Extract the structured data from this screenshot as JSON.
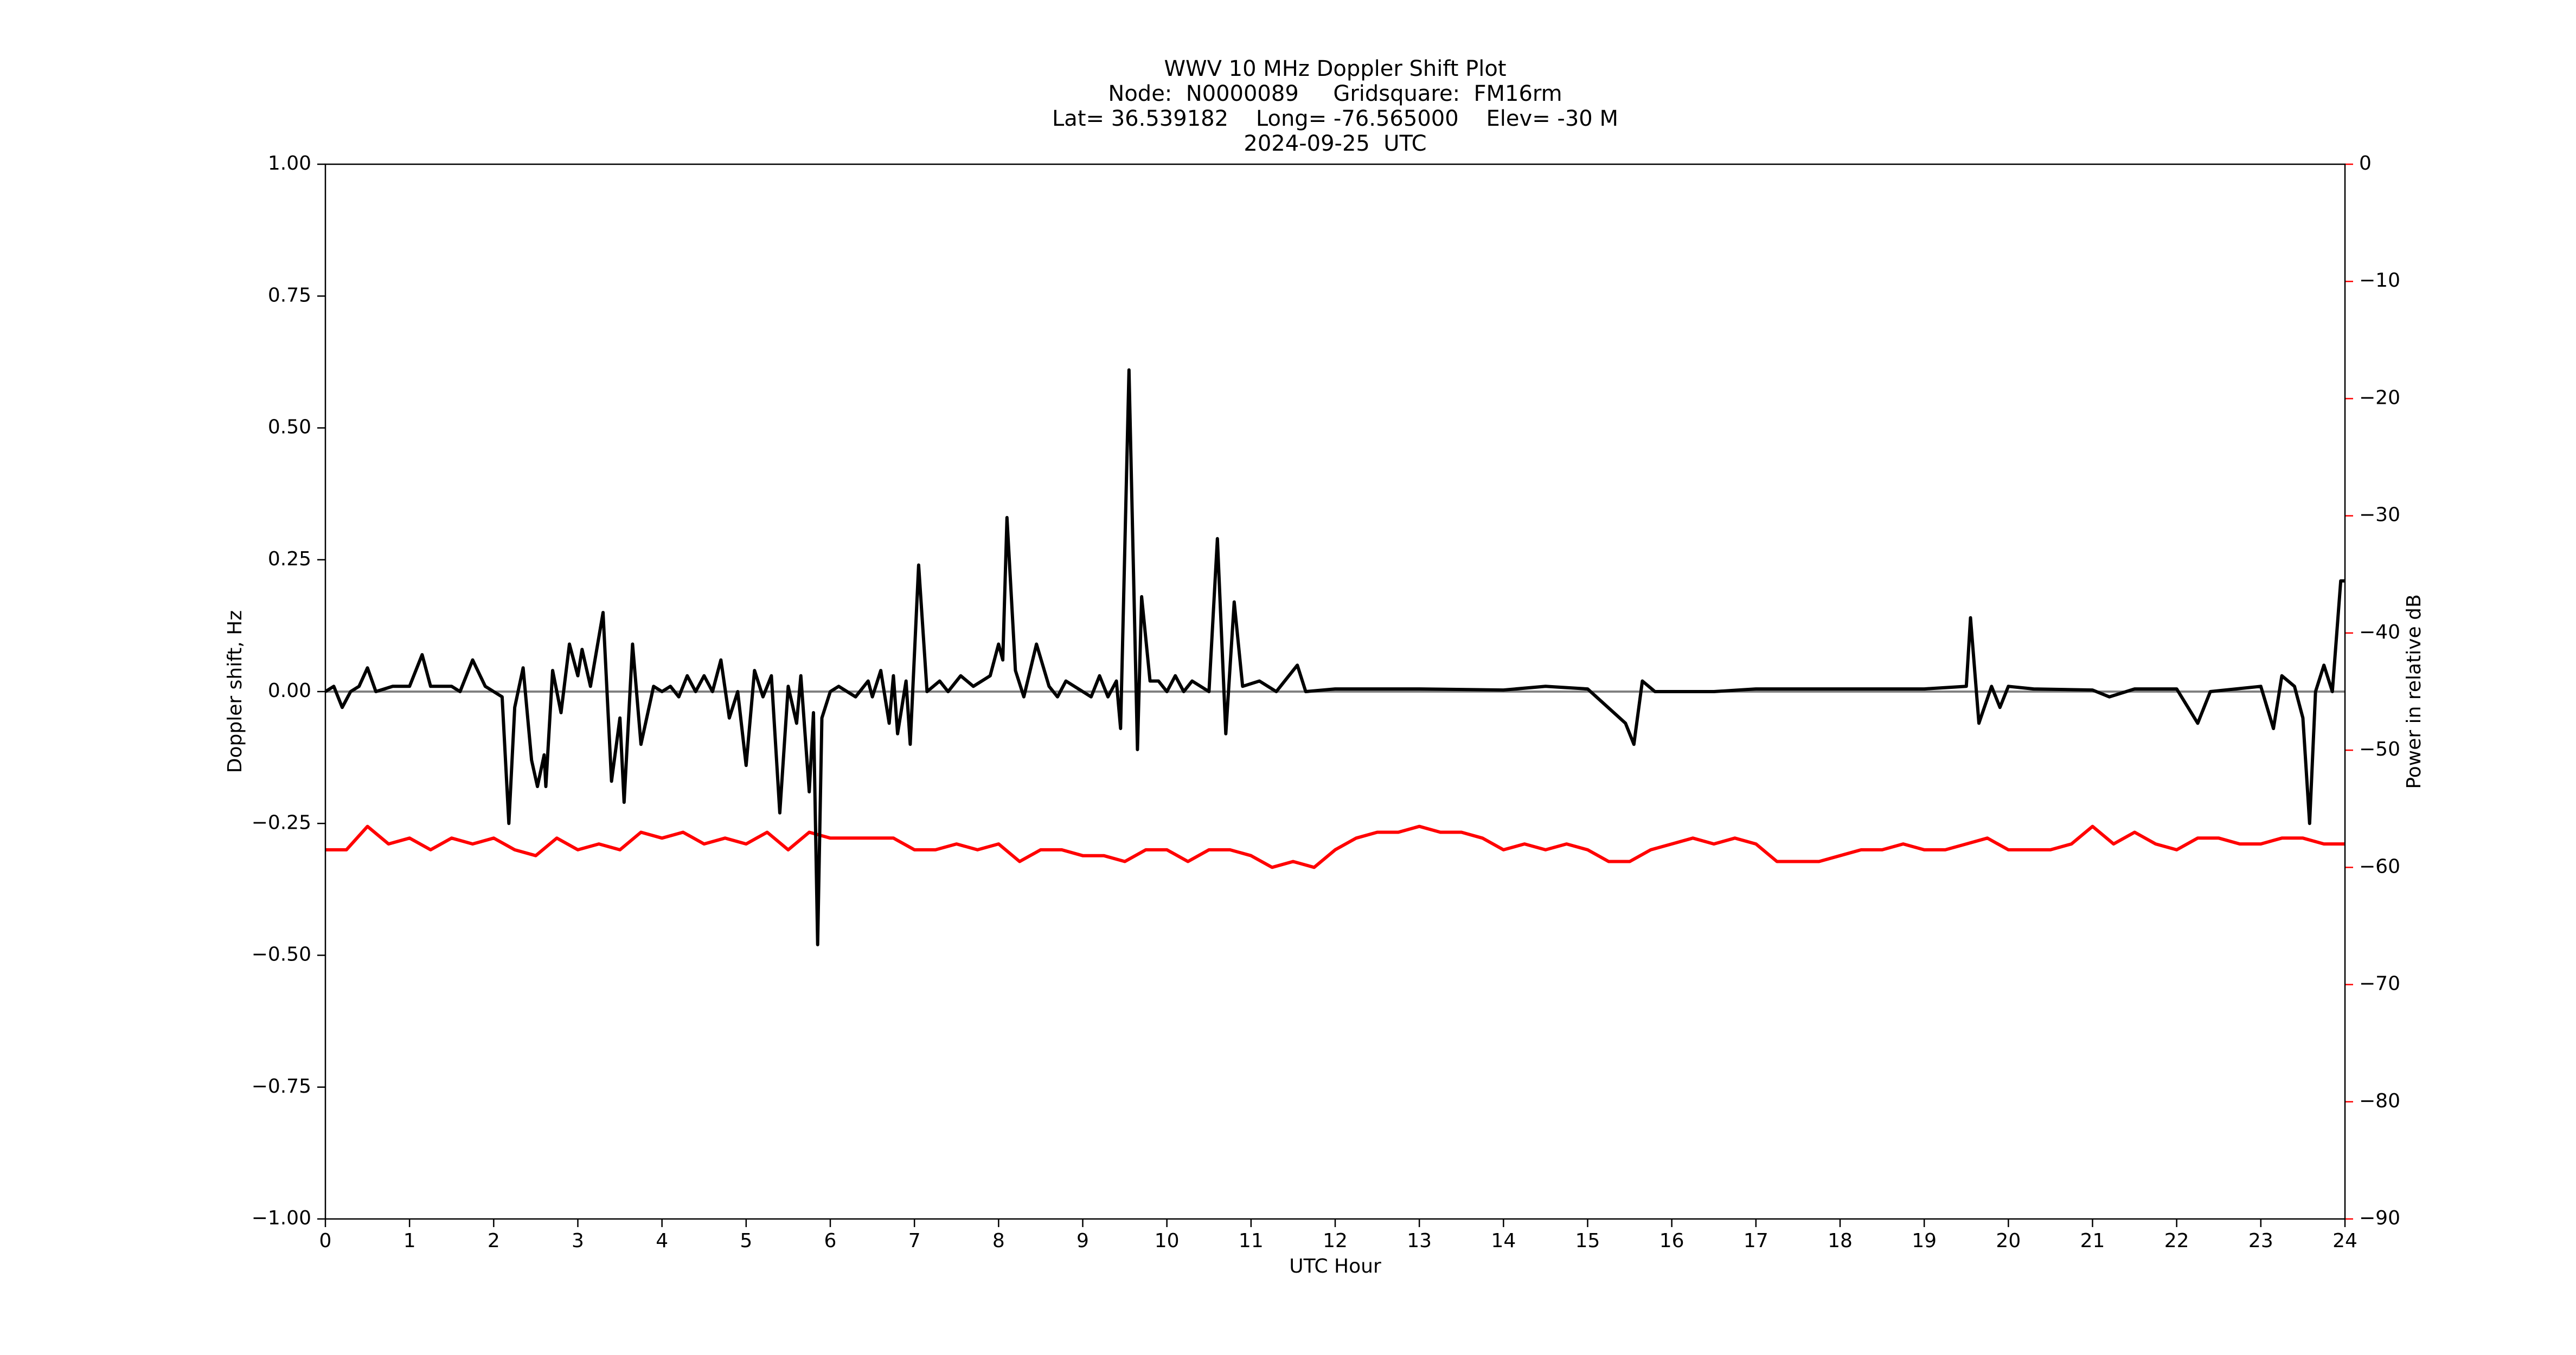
{
  "chart_data": {
    "type": "line",
    "title": "WWV 10 MHz Doppler Shift Plot",
    "subtitle": [
      "Node:  N0000089     Gridsquare:  FM16rm",
      "Lat= 36.539182    Long= -76.565000    Elev= -30 M",
      "2024-09-25  UTC"
    ],
    "xlabel": "UTC Hour",
    "ylabel": "Doppler shift, Hz",
    "y2label": "Power in relative dB",
    "xlim": [
      0,
      24
    ],
    "xticks": [
      0,
      1,
      2,
      3,
      4,
      5,
      6,
      7,
      8,
      9,
      10,
      11,
      12,
      13,
      14,
      15,
      16,
      17,
      18,
      19,
      20,
      21,
      22,
      23,
      24
    ],
    "ylim": [
      -1,
      1
    ],
    "yticks": [
      {
        "value": -1,
        "label": "−1.00"
      },
      {
        "value": -0.75,
        "label": "−0.75"
      },
      {
        "value": -0.5,
        "label": "−0.50"
      },
      {
        "value": -0.25,
        "label": "−0.25"
      },
      {
        "value": 0,
        "label": "0.00"
      },
      {
        "value": 0.25,
        "label": "0.25"
      },
      {
        "value": 0.5,
        "label": "0.50"
      },
      {
        "value": 0.75,
        "label": "0.75"
      },
      {
        "value": 1,
        "label": "1.00"
      }
    ],
    "y2lim": [
      -90,
      0
    ],
    "y2ticks": [
      {
        "value": -90,
        "label": "−90"
      },
      {
        "value": -80,
        "label": "−80"
      },
      {
        "value": -70,
        "label": "−70"
      },
      {
        "value": -60,
        "label": "−60"
      },
      {
        "value": -50,
        "label": "−50"
      },
      {
        "value": -40,
        "label": "−40"
      },
      {
        "value": -30,
        "label": "−30"
      },
      {
        "value": -20,
        "label": "−20"
      },
      {
        "value": -10,
        "label": "−10"
      },
      0
    ],
    "y2color": "#ff0000",
    "reference_line": 0,
    "reference_color": "#808080",
    "series": [
      {
        "name": "Doppler shift",
        "color": "#000000",
        "x": [
          0,
          0.1,
          0.2,
          0.3,
          0.4,
          0.5,
          0.6,
          0.8,
          1.0,
          1.15,
          1.25,
          1.5,
          1.6,
          1.75,
          1.9,
          2.0,
          2.1,
          2.18,
          2.25,
          2.35,
          2.45,
          2.52,
          2.6,
          2.62,
          2.7,
          2.8,
          2.9,
          3.0,
          3.05,
          3.15,
          3.3,
          3.4,
          3.5,
          3.55,
          3.65,
          3.75,
          3.9,
          4.0,
          4.1,
          4.2,
          4.3,
          4.4,
          4.5,
          4.6,
          4.7,
          4.8,
          4.9,
          5.0,
          5.1,
          5.2,
          5.3,
          5.4,
          5.5,
          5.6,
          5.65,
          5.75,
          5.8,
          5.85,
          5.9,
          6.0,
          6.1,
          6.3,
          6.45,
          6.5,
          6.6,
          6.7,
          6.75,
          6.8,
          6.9,
          6.95,
          7.05,
          7.15,
          7.3,
          7.4,
          7.55,
          7.7,
          7.9,
          8.0,
          8.05,
          8.1,
          8.2,
          8.3,
          8.45,
          8.6,
          8.7,
          8.8,
          9.0,
          9.1,
          9.2,
          9.3,
          9.4,
          9.45,
          9.55,
          9.65,
          9.7,
          9.8,
          9.9,
          10.0,
          10.1,
          10.2,
          10.3,
          10.5,
          10.6,
          10.7,
          10.8,
          10.9,
          11.1,
          11.3,
          11.55,
          11.65,
          12,
          13,
          14,
          14.5,
          15,
          15.45,
          15.55,
          15.65,
          15.8,
          16.5,
          17,
          18,
          19,
          19.5,
          19.55,
          19.65,
          19.8,
          19.9,
          20.0,
          20.3,
          21,
          21.2,
          21.5,
          22,
          22.25,
          22.4,
          23,
          23.15,
          23.25,
          23.4,
          23.5,
          23.58,
          23.65,
          23.75,
          23.85,
          23.95,
          24
        ],
        "values": [
          0,
          0.01,
          -0.03,
          0,
          0.01,
          0.045,
          0,
          0.01,
          0.01,
          0.07,
          0.01,
          0.01,
          0,
          0.06,
          0.01,
          0,
          -0.01,
          -0.25,
          -0.03,
          0.045,
          -0.13,
          -0.18,
          -0.12,
          -0.18,
          0.04,
          -0.04,
          0.09,
          0.03,
          0.08,
          0.01,
          0.15,
          -0.17,
          -0.05,
          -0.21,
          0.09,
          -0.1,
          0.01,
          0,
          0.01,
          -0.01,
          0.03,
          0,
          0.03,
          0,
          0.06,
          -0.05,
          0,
          -0.14,
          0.04,
          -0.01,
          0.03,
          -0.23,
          0.01,
          -0.06,
          0.03,
          -0.19,
          -0.04,
          -0.48,
          -0.05,
          0,
          0.01,
          -0.01,
          0.02,
          -0.01,
          0.04,
          -0.06,
          0.03,
          -0.08,
          0.02,
          -0.1,
          0.24,
          0,
          0.02,
          0,
          0.03,
          0.01,
          0.03,
          0.09,
          0.06,
          0.33,
          0.04,
          -0.01,
          0.09,
          0.01,
          -0.01,
          0.02,
          0,
          -0.01,
          0.03,
          -0.01,
          0.02,
          -0.07,
          0.61,
          -0.11,
          0.18,
          0.02,
          0.02,
          0,
          0.03,
          0,
          0.02,
          0,
          0.29,
          -0.08,
          0.17,
          0.01,
          0.02,
          0,
          0.05,
          0,
          0.005,
          0.005,
          0.003,
          0.01,
          0.005,
          -0.06,
          -0.1,
          0.02,
          0,
          0,
          0.005,
          0.005,
          0.005,
          0.01,
          0.14,
          -0.06,
          0.01,
          -0.03,
          0.01,
          0.005,
          0.003,
          -0.01,
          0.005,
          0.005,
          -0.06,
          0,
          0.01,
          -0.07,
          0.03,
          0.01,
          -0.05,
          -0.25,
          0,
          0.05,
          0,
          0.21,
          0.21
        ]
      },
      {
        "name": "Power",
        "color": "#ff0000",
        "axis": "y2",
        "x": [
          0,
          0.25,
          0.5,
          0.75,
          1,
          1.25,
          1.5,
          1.75,
          2,
          2.25,
          2.5,
          2.75,
          3,
          3.25,
          3.5,
          3.75,
          4,
          4.25,
          4.5,
          4.75,
          5,
          5.25,
          5.5,
          5.75,
          6,
          6.25,
          6.5,
          6.75,
          7,
          7.25,
          7.5,
          7.75,
          8,
          8.25,
          8.5,
          8.75,
          9,
          9.25,
          9.5,
          9.75,
          10,
          10.25,
          10.5,
          10.75,
          11,
          11.25,
          11.5,
          11.75,
          12,
          12.25,
          12.5,
          12.75,
          13,
          13.25,
          13.5,
          13.75,
          14,
          14.25,
          14.5,
          14.75,
          15,
          15.25,
          15.5,
          15.75,
          16,
          16.25,
          16.5,
          16.75,
          17,
          17.25,
          17.5,
          17.75,
          18,
          18.25,
          18.5,
          18.75,
          19,
          19.25,
          19.5,
          19.75,
          20,
          20.25,
          20.5,
          20.75,
          21,
          21.25,
          21.5,
          21.75,
          22,
          22.25,
          22.5,
          22.75,
          23,
          23.25,
          23.5,
          23.75,
          24
        ],
        "values": [
          -58.5,
          -58.5,
          -56.5,
          -58,
          -57.5,
          -58.5,
          -57.5,
          -58,
          -57.5,
          -58.5,
          -59,
          -57.5,
          -58.5,
          -58,
          -58.5,
          -57,
          -57.5,
          -57,
          -58,
          -57.5,
          -58,
          -57,
          -58.5,
          -57,
          -57.5,
          -57.5,
          -57.5,
          -57.5,
          -58.5,
          -58.5,
          -58,
          -58.5,
          -58,
          -59.5,
          -58.5,
          -58.5,
          -59,
          -59,
          -59.5,
          -58.5,
          -58.5,
          -59.5,
          -58.5,
          -58.5,
          -59,
          -60,
          -59.5,
          -60,
          -58.5,
          -57.5,
          -57,
          -57,
          -56.5,
          -57,
          -57,
          -57.5,
          -58.5,
          -58,
          -58.5,
          -58,
          -58.5,
          -59.5,
          -59.5,
          -58.5,
          -58,
          -57.5,
          -58,
          -57.5,
          -58,
          -59.5,
          -59.5,
          -59.5,
          -59,
          -58.5,
          -58.5,
          -58,
          -58.5,
          -58.5,
          -58,
          -57.5,
          -58.5,
          -58.5,
          -58.5,
          -58,
          -56.5,
          -58,
          -57,
          -58,
          -58.5,
          -57.5,
          -57.5,
          -58,
          -58,
          -57.5,
          -57.5,
          -58,
          -58
        ]
      }
    ]
  }
}
